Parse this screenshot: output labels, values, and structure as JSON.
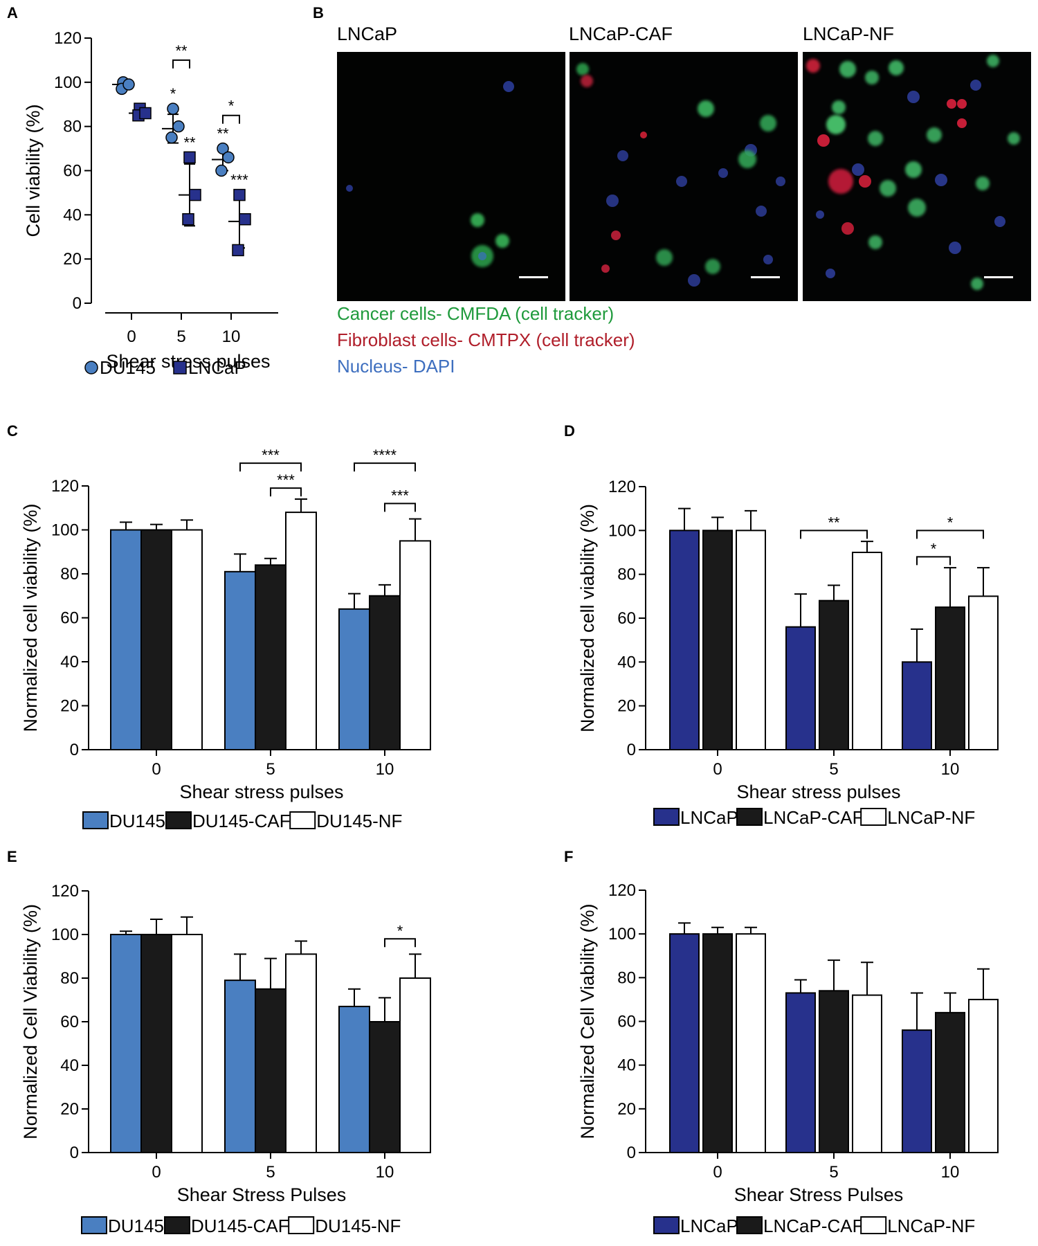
{
  "panel_letters": {
    "a": "A",
    "b": "B",
    "c": "C",
    "d": "D",
    "e": "E",
    "f": "F"
  },
  "colors": {
    "du145": "#4a7fc1",
    "lncap": "#27318c",
    "caf": "#1a1a1a",
    "nf": "#ffffff",
    "cmfda_text": "#1f9a3c",
    "cmtpx_text": "#b01e2a",
    "dapi_text": "#3e6fbf"
  },
  "micrographs": {
    "titles": [
      "LNCaP",
      "LNCaP-CAF",
      "LNCaP-NF"
    ],
    "captions": [
      {
        "text": "Cancer cells- CMFDA  (cell tracker)",
        "color": "#1f9a3c"
      },
      {
        "text": "Fibroblast cells- CMTPX (cell tracker)",
        "color": "#b01e2a"
      },
      {
        "text": "Nucleus- DAPI",
        "color": "#3e6fbf"
      }
    ]
  },
  "chart_data": [
    {
      "panel": "A",
      "type": "scatter",
      "xlabel": "Shear stress pulses",
      "ylabel": "Cell viability (%)",
      "ylim": [
        0,
        120
      ],
      "yticks": [
        0,
        20,
        40,
        60,
        80,
        100,
        120
      ],
      "categories": [
        "0",
        "5",
        "10"
      ],
      "series": [
        {
          "name": "DU145",
          "marker": "circle",
          "color": "#4a7fc1",
          "points": [
            [
              100,
              97,
              99
            ],
            [
              88,
              75,
              80
            ],
            [
              70,
              60,
              66
            ]
          ],
          "means": [
            99,
            79,
            65
          ],
          "sd": [
            1.5,
            6.5,
            5
          ]
        },
        {
          "name": "LNCaP",
          "marker": "square",
          "color": "#27318c",
          "points": [
            [
              88,
              85,
              86
            ],
            [
              66,
              38,
              49
            ],
            [
              49,
              24,
              38
            ]
          ],
          "means": [
            86,
            49,
            37
          ],
          "sd": [
            1.5,
            14,
            12
          ]
        }
      ],
      "annotations": [
        {
          "text": "*",
          "category": 1,
          "series": 0
        },
        {
          "text": "**",
          "category": 1,
          "series": 1
        },
        {
          "text": "**",
          "category": 2,
          "series": 0
        },
        {
          "text": "***",
          "category": 2,
          "series": 1
        },
        {
          "text": "**",
          "bracket": [
            1,
            1
          ],
          "y": 110
        },
        {
          "text": "*",
          "bracket": [
            2,
            2
          ],
          "y": 85
        }
      ]
    },
    {
      "panel": "C",
      "type": "bar",
      "xlabel": "Shear stress pulses",
      "ylabel": "Normalized cell viability (%)",
      "ylim": [
        0,
        120
      ],
      "yticks": [
        0,
        20,
        40,
        60,
        80,
        100,
        120
      ],
      "categories": [
        "0",
        "5",
        "10"
      ],
      "series": [
        {
          "name": "DU145",
          "color": "#4a7fc1",
          "values": [
            100,
            81,
            64
          ],
          "errors": [
            3.5,
            8,
            7
          ]
        },
        {
          "name": "DU145-CAF",
          "color": "#1a1a1a",
          "values": [
            100,
            84,
            70
          ],
          "errors": [
            2.5,
            3,
            5
          ]
        },
        {
          "name": "DU145-NF",
          "color": "#ffffff",
          "values": [
            100,
            108,
            95
          ],
          "errors": [
            4.5,
            6,
            10
          ]
        }
      ],
      "significance": [
        {
          "text": "***",
          "category": 1,
          "from": 0,
          "to": 2,
          "y": 119,
          "level": 1
        },
        {
          "text": "***",
          "category": 1,
          "from": 1,
          "to": 2,
          "y": 119,
          "level": 0
        },
        {
          "text": "****",
          "category": 2,
          "from": 0,
          "to": 2,
          "y": 119,
          "level": 1
        },
        {
          "text": "***",
          "category": 2,
          "from": 1,
          "to": 2,
          "y": 112,
          "level": 0
        }
      ]
    },
    {
      "panel": "D",
      "type": "bar",
      "xlabel": "Shear stress pulses",
      "ylabel": "Normalized cell viability (%)",
      "ylim": [
        0,
        120
      ],
      "yticks": [
        0,
        20,
        40,
        60,
        80,
        100,
        120
      ],
      "categories": [
        "0",
        "5",
        "10"
      ],
      "series": [
        {
          "name": "LNCaP",
          "color": "#27318c",
          "values": [
            100,
            56,
            40
          ],
          "errors": [
            10,
            15,
            15
          ]
        },
        {
          "name": "LNCaP-CAF",
          "color": "#1a1a1a",
          "values": [
            100,
            68,
            65
          ],
          "errors": [
            6,
            7,
            18
          ]
        },
        {
          "name": "LNCaP-NF",
          "color": "#ffffff",
          "values": [
            100,
            90,
            70
          ],
          "errors": [
            9,
            5,
            13
          ]
        }
      ],
      "significance": [
        {
          "text": "**",
          "category": 1,
          "from": 0,
          "to": 2,
          "y": 100,
          "level": 0
        },
        {
          "text": "*",
          "category": 2,
          "from": 0,
          "to": 2,
          "y": 100,
          "level": 0
        },
        {
          "text": "*",
          "category": 2,
          "from": 0,
          "to": 1,
          "y": 88,
          "level": 0
        }
      ]
    },
    {
      "panel": "E",
      "type": "bar",
      "xlabel": "Shear Stress Pulses",
      "ylabel": "Normalized Cell Viability (%)",
      "ylim": [
        0,
        120
      ],
      "yticks": [
        0,
        20,
        40,
        60,
        80,
        100,
        120
      ],
      "categories": [
        "0",
        "5",
        "10"
      ],
      "series": [
        {
          "name": "DU145",
          "color": "#4a7fc1",
          "values": [
            100,
            79,
            67
          ],
          "errors": [
            1.5,
            12,
            8
          ]
        },
        {
          "name": "DU145-CAF",
          "color": "#1a1a1a",
          "values": [
            100,
            75,
            60
          ],
          "errors": [
            7,
            14,
            11
          ]
        },
        {
          "name": "DU145-NF",
          "color": "#ffffff",
          "values": [
            100,
            91,
            80
          ],
          "errors": [
            8,
            6,
            11
          ]
        }
      ],
      "significance": [
        {
          "text": "*",
          "category": 2,
          "from": 1,
          "to": 2,
          "y": 98,
          "level": 0
        }
      ]
    },
    {
      "panel": "F",
      "type": "bar",
      "xlabel": "Shear Stress Pulses",
      "ylabel": "Normalized Cell Viability (%)",
      "ylim": [
        0,
        120
      ],
      "yticks": [
        0,
        20,
        40,
        60,
        80,
        100,
        120
      ],
      "categories": [
        "0",
        "5",
        "10"
      ],
      "series": [
        {
          "name": "LNCaP",
          "color": "#27318c",
          "values": [
            100,
            73,
            56
          ],
          "errors": [
            5,
            6,
            17
          ]
        },
        {
          "name": "LNCaP-CAF",
          "color": "#1a1a1a",
          "values": [
            100,
            74,
            64
          ],
          "errors": [
            3,
            14,
            9
          ]
        },
        {
          "name": "LNCaP-NF",
          "color": "#ffffff",
          "values": [
            100,
            72,
            70
          ],
          "errors": [
            3,
            15,
            14
          ]
        }
      ],
      "significance": []
    }
  ]
}
